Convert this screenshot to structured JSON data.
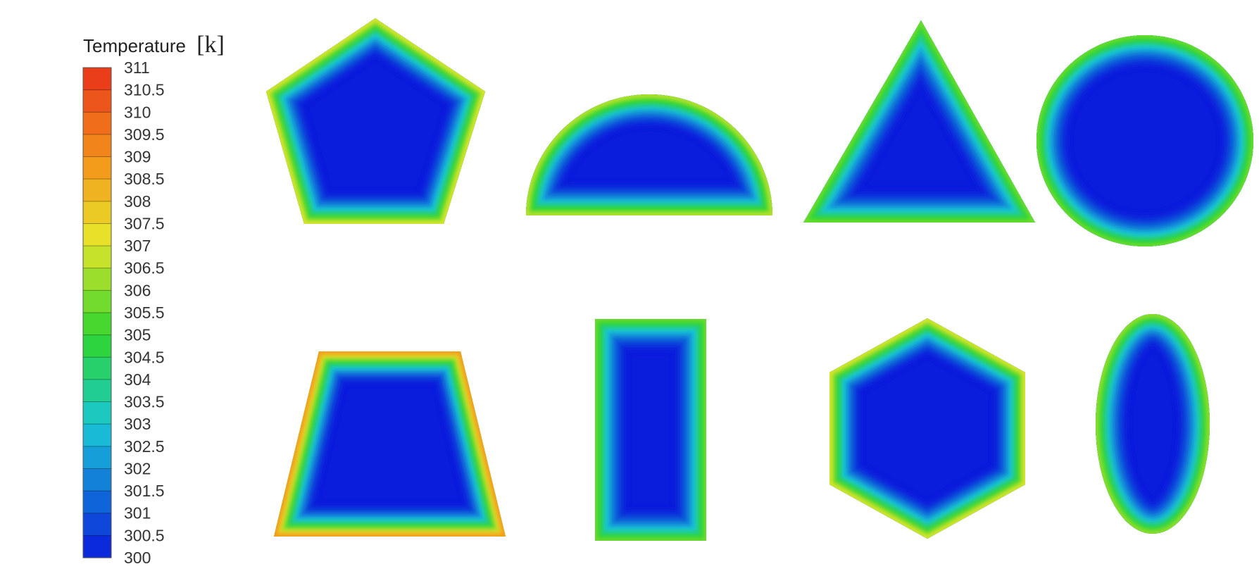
{
  "legend": {
    "title": "Temperature",
    "unit": "[k]",
    "min": 300,
    "max": 311,
    "ticks": [
      "311",
      "310.5",
      "310",
      "309.5",
      "309",
      "308.5",
      "308",
      "307.5",
      "307",
      "306.5",
      "306",
      "305.5",
      "305",
      "304.5",
      "304",
      "303.5",
      "303",
      "302.5",
      "302",
      "301.5",
      "301",
      "300.5",
      "300"
    ]
  },
  "shapes": [
    {
      "name": "pentagon",
      "edge_temperature": 308
    },
    {
      "name": "semicircle",
      "edge_temperature": 307.5
    },
    {
      "name": "triangle",
      "edge_temperature": 306.5
    },
    {
      "name": "circle",
      "edge_temperature": 306.5
    },
    {
      "name": "trapezoid",
      "edge_temperature": 310
    },
    {
      "name": "rectangle",
      "edge_temperature": 306.5
    },
    {
      "name": "hexagon",
      "edge_temperature": 308
    },
    {
      "name": "ellipse",
      "edge_temperature": 307
    }
  ],
  "colors": {
    "cold": "#0a1cdc",
    "cyan": "#19c7d6",
    "green": "#2fd52f",
    "yellow": "#e7e52a",
    "orange": "#f39a1c",
    "red": "#e9321a"
  }
}
